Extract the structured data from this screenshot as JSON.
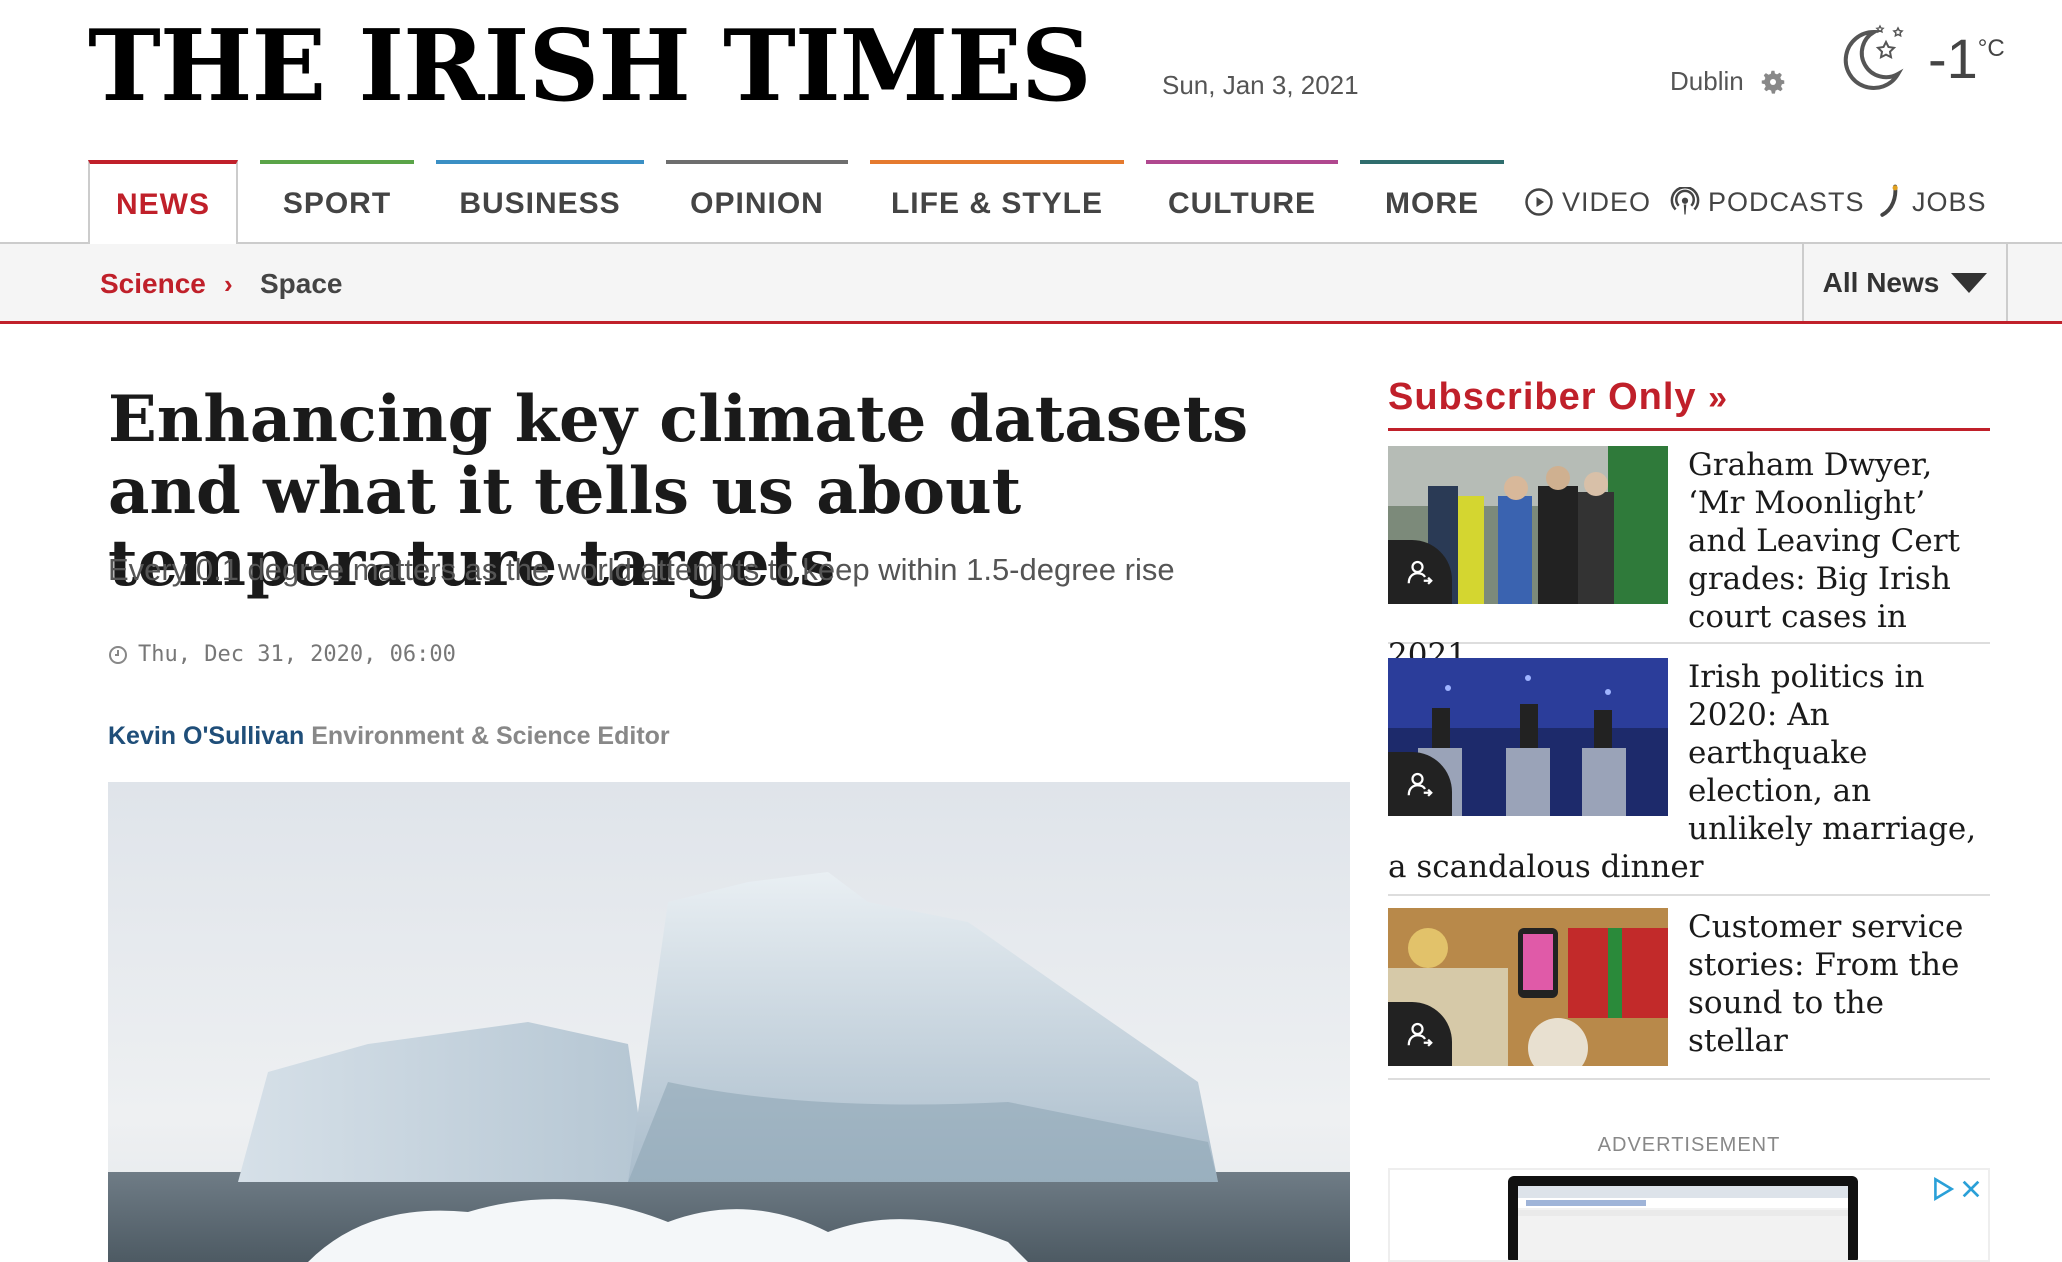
{
  "masthead": {
    "logo": "THE IRISH TIMES",
    "date": "Sun, Jan 3, 2021",
    "location": "Dublin",
    "temperature": "-1",
    "temp_unit": "°C"
  },
  "nav": {
    "items": [
      {
        "label": "NEWS",
        "color": "#c0202a"
      },
      {
        "label": "SPORT",
        "color": "#5aa448"
      },
      {
        "label": "BUSINESS",
        "color": "#3a8fc4"
      },
      {
        "label": "OPINION",
        "color": "#6e6e6e"
      },
      {
        "label": "LIFE & STYLE",
        "color": "#e57a2e"
      },
      {
        "label": "CULTURE",
        "color": "#b0488f"
      },
      {
        "label": "MORE",
        "color": "#2f6d6d"
      }
    ],
    "utility": {
      "video": "VIDEO",
      "podcasts": "PODCASTS",
      "jobs": "JOBS"
    }
  },
  "subnav": {
    "section": "Science",
    "subsection": "Space",
    "all_news": "All News"
  },
  "article": {
    "headline": "Enhancing key climate datasets and what it tells us about temperature targets",
    "standfirst": "Every 0.1 degree matters as the world attempts to keep within 1.5-degree rise",
    "timestamp": "Thu, Dec 31, 2020, 06:00",
    "author": "Kevin O'Sullivan",
    "role": "Environment & Science Editor"
  },
  "sidebar": {
    "heading": "Subscriber Only",
    "stories": [
      {
        "title": "Graham Dwyer, ‘Mr Moonlight’ and Leaving Cert grades: Big Irish court cases in 2021"
      },
      {
        "title": "Irish politics in 2020: An earthquake election, an unlikely marriage, a scandalous dinner"
      },
      {
        "title": "Customer service stories: From the sound to the stellar"
      }
    ],
    "advertisement_label": "ADVERTISEMENT"
  },
  "colors": {
    "accent": "#c0202a",
    "author": "#1f4e79"
  }
}
